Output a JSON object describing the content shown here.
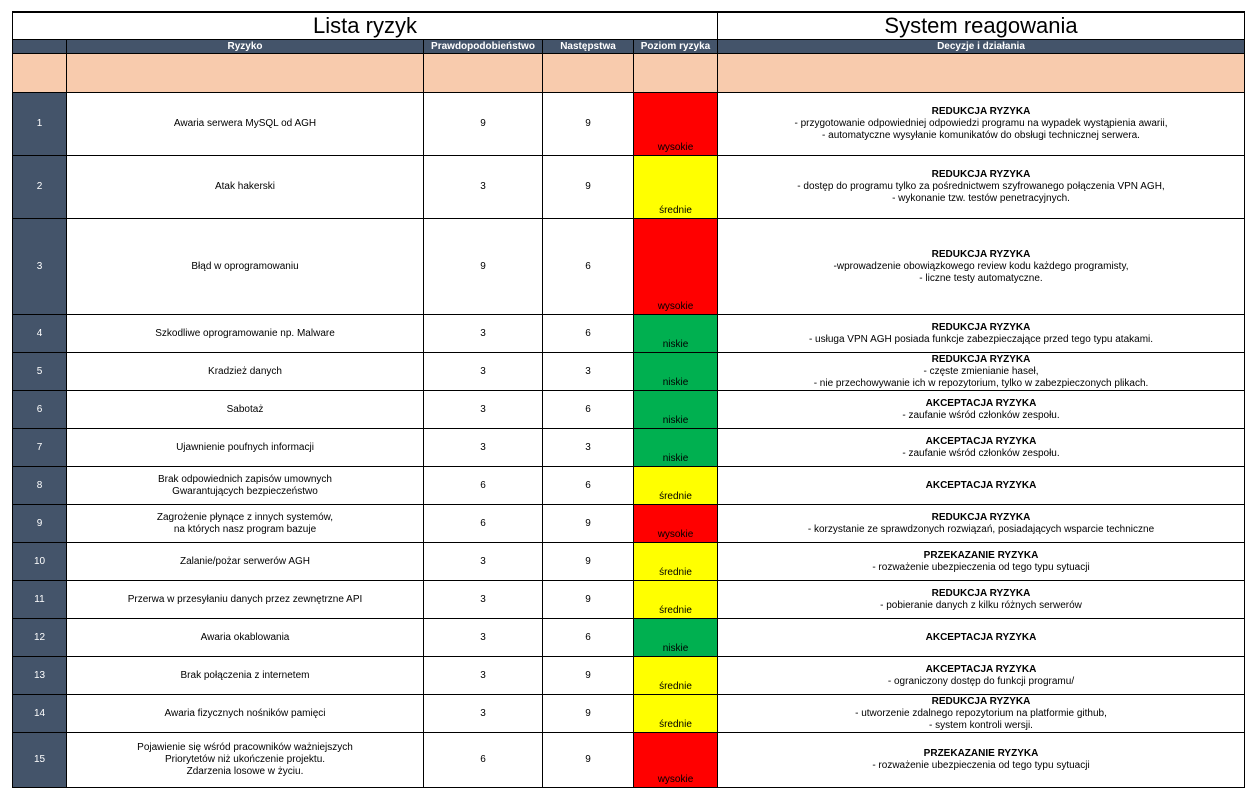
{
  "titles": {
    "left": "Lista ryzyk",
    "right": "System reagowania"
  },
  "headers": {
    "num": "",
    "risk": "Ryzyko",
    "probability": "Prawdopodobieństwo",
    "consequence": "Następstwa",
    "level": "Poziom ryzyka",
    "actions": "Decyzje i działania"
  },
  "colors": {
    "header": "#44546a",
    "peach": "#f8cbad",
    "wysokie": "#ff0000",
    "srednie": "#ffff00",
    "niskie": "#00b050"
  },
  "rows": [
    {
      "n": "1",
      "risk": "Awaria serwera MySQL od AGH",
      "p": "9",
      "c": "9",
      "level": "wysokie",
      "level_key": "wysokie",
      "action_type": "REDUKCJA RYZYKA",
      "actions": "- przygotowanie odpowiedniej odpowiedzi programu na wypadek wystąpienia awarii,\n- automatyczne wysyłanie komunikatów do obsługi technicznej serwera."
    },
    {
      "n": "2",
      "risk": "Atak hakerski",
      "p": "3",
      "c": "9",
      "level": "średnie",
      "level_key": "srednie",
      "action_type": "REDUKCJA RYZYKA",
      "actions": "- dostęp do programu tylko za pośrednictwem szyfrowanego połączenia VPN AGH,\n- wykonanie tzw. testów penetracyjnych."
    },
    {
      "n": "3",
      "risk": "Błąd w oprogramowaniu",
      "p": "9",
      "c": "6",
      "level": "wysokie",
      "level_key": "wysokie",
      "action_type": "REDUKCJA RYZYKA",
      "actions": "-wprowadzenie obowiązkowego review kodu każdego programisty,\n- liczne testy automatyczne."
    },
    {
      "n": "4",
      "risk": "Szkodliwe oprogramowanie np. Malware",
      "p": "3",
      "c": "6",
      "level": "niskie",
      "level_key": "niskie",
      "action_type": "REDUKCJA RYZYKA",
      "actions": "- usługa VPN AGH posiada funkcje zabezpieczające przed tego typu atakami."
    },
    {
      "n": "5",
      "risk": "Kradzież danych",
      "p": "3",
      "c": "3",
      "level": "niskie",
      "level_key": "niskie",
      "action_type": "REDUKCJA RYZYKA",
      "actions": "- częste zmienianie haseł,\n- nie przechowywanie ich w repozytorium, tylko w zabezpieczonych plikach."
    },
    {
      "n": "6",
      "risk": "Sabotaż",
      "p": "3",
      "c": "6",
      "level": "niskie",
      "level_key": "niskie",
      "action_type": "AKCEPTACJA RYZYKA",
      "actions": "- zaufanie wśród członków zespołu."
    },
    {
      "n": "7",
      "risk": "Ujawnienie poufnych informacji",
      "p": "3",
      "c": "3",
      "level": "niskie",
      "level_key": "niskie",
      "action_type": "AKCEPTACJA RYZYKA",
      "actions": "- zaufanie wśród członków zespołu."
    },
    {
      "n": "8",
      "risk": "Brak odpowiednich zapisów umownych\nGwarantujących bezpieczeństwo",
      "p": "6",
      "c": "6",
      "level": "średnie",
      "level_key": "srednie",
      "action_type": "AKCEPTACJA RYZYKA",
      "actions": ""
    },
    {
      "n": "9",
      "risk": "Zagrożenie płynące z innych systemów,\nna których nasz program bazuje",
      "p": "6",
      "c": "9",
      "level": "wysokie",
      "level_key": "wysokie",
      "action_type": "REDUKCJA RYZYKA",
      "actions": "- korzystanie ze sprawdzonych rozwiązań, posiadających wsparcie techniczne"
    },
    {
      "n": "10",
      "risk": "Zalanie/pożar serwerów AGH",
      "p": "3",
      "c": "9",
      "level": "średnie",
      "level_key": "srednie",
      "action_type": "PRZEKAZANIE RYZYKA",
      "actions": "- rozważenie ubezpieczenia od tego typu sytuacji"
    },
    {
      "n": "11",
      "risk": "Przerwa w przesyłaniu danych przez zewnętrzne API",
      "p": "3",
      "c": "9",
      "level": "średnie",
      "level_key": "srednie",
      "action_type": "REDUKCJA RYZYKA",
      "actions": "- pobieranie danych z kilku różnych serwerów"
    },
    {
      "n": "12",
      "risk": "Awaria okablowania",
      "p": "3",
      "c": "6",
      "level": "niskie",
      "level_key": "niskie",
      "action_type": "AKCEPTACJA RYZYKA",
      "actions": ""
    },
    {
      "n": "13",
      "risk": "Brak połączenia z internetem",
      "p": "3",
      "c": "9",
      "level": "średnie",
      "level_key": "srednie",
      "action_type": "AKCEPTACJA RYZYKA",
      "actions": "- ograniczony dostęp do funkcji programu/"
    },
    {
      "n": "14",
      "risk": "Awaria fizycznych nośników pamięci",
      "p": "3",
      "c": "9",
      "level": "średnie",
      "level_key": "srednie",
      "action_type": "REDUKCJA RYZYKA",
      "actions": "- utworzenie zdalnego repozytorium na platformie github,\n- system kontroli wersji."
    },
    {
      "n": "15",
      "risk": "Pojawienie się wśród pracowników ważniejszych\nPriorytetów niż ukończenie projektu.\nZdarzenia losowe w życiu.",
      "p": "6",
      "c": "9",
      "level": "wysokie",
      "level_key": "wysokie",
      "action_type": "PRZEKAZANIE RYZYKA",
      "actions": "- rozważenie ubezpieczenia od tego typu sytuacji"
    }
  ]
}
